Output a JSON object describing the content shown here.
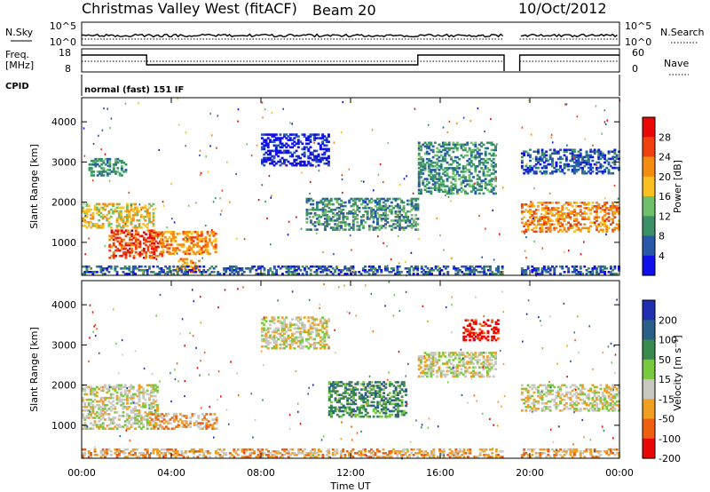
{
  "header": {
    "title": "Christmas Valley West (fitACF)",
    "beam": "Beam 20",
    "date": "10/Oct/2012"
  },
  "panels": {
    "nsky_label": "N.Sky",
    "nsearch_label": "N.Search",
    "freq_label_line1": "Freq.",
    "freq_label_line2": "[MHz]",
    "nave_label": "Nave",
    "cpid_label": "CPID",
    "cpid_text": "normal (fast) 151 IF",
    "nsky_ticks": [
      "10^5",
      "10^0"
    ],
    "nsearch_ticks": [
      "10^5",
      "10^0"
    ],
    "freq_ticks": [
      "18",
      "8"
    ],
    "nave_ticks": [
      "60",
      "0"
    ]
  },
  "chart_data": [
    {
      "type": "heatmap",
      "name": "power",
      "ylabel": "Slant Range [km]",
      "xlabel": "Time UT",
      "x_ticks": [
        "00:00",
        "04:00",
        "08:00",
        "12:00",
        "16:00",
        "20:00",
        "00:00"
      ],
      "xlim_hours": [
        0,
        24
      ],
      "ylim_km": [
        180,
        4600
      ],
      "y_ticks": [
        1000,
        2000,
        3000,
        4000
      ],
      "colorbar_label": "Power [dB]",
      "colorbar_ticks": [
        4,
        8,
        12,
        16,
        20,
        24,
        28
      ],
      "colors": [
        "#1010e8",
        "#2858a8",
        "#3c9068",
        "#70bf6c",
        "#f8c020",
        "#f48c10",
        "#f04010",
        "#e80808"
      ],
      "data_gap_hours": [
        18.85,
        19.55
      ],
      "bands": [
        {
          "t0": 0.0,
          "t1": 3.2,
          "r0": 1350,
          "r1": 1950,
          "level": 4
        },
        {
          "t0": 0.3,
          "t1": 2.0,
          "r0": 2650,
          "r1": 3100,
          "level": 2
        },
        {
          "t0": 1.2,
          "t1": 3.6,
          "r0": 600,
          "r1": 1300,
          "level": 6
        },
        {
          "t0": 3.5,
          "t1": 6.0,
          "r0": 700,
          "r1": 1250,
          "level": 5
        },
        {
          "t0": 4.2,
          "t1": 5.2,
          "r0": 250,
          "r1": 600,
          "level": 5
        },
        {
          "t0": 0.0,
          "t1": 18.8,
          "r0": 200,
          "r1": 400,
          "level": 1
        },
        {
          "t0": 19.6,
          "t1": 24.0,
          "r0": 200,
          "r1": 400,
          "level": 1
        },
        {
          "t0": 8.0,
          "t1": 11.0,
          "r0": 2900,
          "r1": 3700,
          "level": 0
        },
        {
          "t0": 10.0,
          "t1": 15.0,
          "r0": 1300,
          "r1": 2100,
          "level": 2
        },
        {
          "t0": 15.0,
          "t1": 18.5,
          "r0": 2200,
          "r1": 3500,
          "level": 2
        },
        {
          "t0": 19.6,
          "t1": 24.0,
          "r0": 1250,
          "r1": 2000,
          "level": 5
        },
        {
          "t0": 19.6,
          "t1": 24.0,
          "r0": 2700,
          "r1": 3300,
          "level": 1
        }
      ]
    },
    {
      "type": "heatmap",
      "name": "velocity",
      "ylabel": "Slant Range [km]",
      "xlabel": "Time UT",
      "x_ticks": [
        "00:00",
        "04:00",
        "08:00",
        "12:00",
        "16:00",
        "20:00",
        "00:00"
      ],
      "xlim_hours": [
        0,
        24
      ],
      "ylim_km": [
        180,
        4600
      ],
      "y_ticks": [
        1000,
        2000,
        3000,
        4000
      ],
      "colorbar_label": "Velocity [m s⁻¹]",
      "colorbar_ticks": [
        200,
        100,
        50,
        15,
        -15,
        -50,
        -100,
        -200
      ],
      "colors": [
        "#2030b0",
        "#2a6088",
        "#3a8a50",
        "#78c840",
        "#c8c8c0",
        "#f0a020",
        "#f06010",
        "#e80808"
      ],
      "data_gap_hours": [
        18.85,
        19.55
      ],
      "bands": [
        {
          "t0": 0.0,
          "t1": 3.4,
          "r0": 900,
          "r1": 2000,
          "level": 4
        },
        {
          "t0": 3.0,
          "t1": 6.0,
          "r0": 900,
          "r1": 1300,
          "level": 5
        },
        {
          "t0": 0.0,
          "t1": 18.8,
          "r0": 200,
          "r1": 420,
          "level": 5
        },
        {
          "t0": 19.6,
          "t1": 24.0,
          "r0": 200,
          "r1": 420,
          "level": 5
        },
        {
          "t0": 8.0,
          "t1": 11.0,
          "r0": 2900,
          "r1": 3700,
          "level": 4
        },
        {
          "t0": 11.0,
          "t1": 14.5,
          "r0": 1200,
          "r1": 2100,
          "level": 2
        },
        {
          "t0": 15.0,
          "t1": 18.5,
          "r0": 2200,
          "r1": 2800,
          "level": 4
        },
        {
          "t0": 17.0,
          "t1": 18.6,
          "r0": 3100,
          "r1": 3600,
          "level": 7
        },
        {
          "t0": 19.6,
          "t1": 24.0,
          "r0": 1350,
          "r1": 2000,
          "level": 4
        }
      ]
    }
  ]
}
